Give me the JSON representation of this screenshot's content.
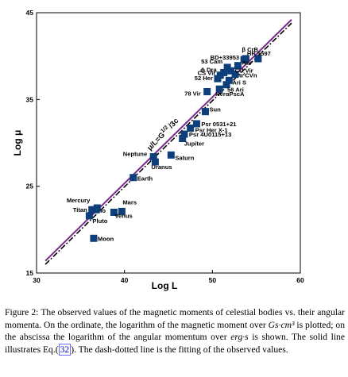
{
  "chart_data": {
    "type": "scatter",
    "xlabel": "Log L",
    "ylabel": "Log μ",
    "xlim": [
      30,
      60
    ],
    "ylim": [
      15,
      45
    ],
    "x_ticks": [
      30,
      40,
      50,
      60
    ],
    "y_ticks": [
      15,
      25,
      35,
      45
    ],
    "grid": false,
    "marker_color": "#0d3f7a",
    "line_annotation": "μ/L=G^1/2 /3c",
    "line_annotation_parts": {
      "pre": "μ/L=G",
      "sup": "1/2",
      "post": "/3c"
    },
    "lines": [
      {
        "style": "solid",
        "color": "#7a2a8e",
        "x": [
          31,
          59
        ],
        "y": [
          16.4,
          44.2
        ]
      },
      {
        "style": "dash-dot",
        "color": "#000000",
        "x": [
          31,
          59
        ],
        "y": [
          16.0,
          43.8
        ]
      }
    ],
    "points": [
      {
        "label": "Moon",
        "x": 36.5,
        "y": 19.0
      },
      {
        "label": "Pluto",
        "x": 36.0,
        "y": 21.6
      },
      {
        "label": "Titan",
        "x": 36.3,
        "y": 22.3
      },
      {
        "label": "Io",
        "x": 36.8,
        "y": 22.3
      },
      {
        "label": "Mercury",
        "x": 36.9,
        "y": 22.5
      },
      {
        "label": "Venus",
        "x": 38.8,
        "y": 22.0
      },
      {
        "label": "Mars",
        "x": 39.7,
        "y": 22.1
      },
      {
        "label": "Earth",
        "x": 41.0,
        "y": 26.0
      },
      {
        "label": "Uranus",
        "x": 43.5,
        "y": 27.8
      },
      {
        "label": "Neptune",
        "x": 43.3,
        "y": 28.4
      },
      {
        "label": "Saturn",
        "x": 45.3,
        "y": 28.6
      },
      {
        "label": "Jupiter",
        "x": 46.6,
        "y": 30.5
      },
      {
        "label": "Psr 4U0115+13",
        "x": 46.8,
        "y": 31.0
      },
      {
        "label": "Psr Her X-1",
        "x": 47.5,
        "y": 31.7
      },
      {
        "label": "Psr 0531+21",
        "x": 48.2,
        "y": 32.2
      },
      {
        "label": "Sun",
        "x": 49.2,
        "y": 33.6
      },
      {
        "label": "78 Vir",
        "x": 49.4,
        "y": 35.9
      },
      {
        "label": "HerαPscA",
        "x": 50.8,
        "y": 36.2
      },
      {
        "label": "56 Ari",
        "x": 51.6,
        "y": 36.7
      },
      {
        "label": "Ari S",
        "x": 51.9,
        "y": 37.2
      },
      {
        "label": "52 Her",
        "x": 50.6,
        "y": 37.4
      },
      {
        "label": "CS Vir",
        "x": 50.9,
        "y": 37.8
      },
      {
        "label": "ϕ Dra",
        "x": 51.3,
        "y": 38.1
      },
      {
        "label": "α²CVn",
        "x": 52.6,
        "y": 37.9
      },
      {
        "label": "CU Vir",
        "x": 52.1,
        "y": 38.3
      },
      {
        "label": "53 Cam",
        "x": 51.7,
        "y": 38.7
      },
      {
        "label": "Aur",
        "x": 52.9,
        "y": 38.9
      },
      {
        "label": "BD+33953",
        "x": 53.6,
        "y": 39.6
      },
      {
        "label": "β CrB",
        "x": 53.8,
        "y": 39.7
      },
      {
        "label": "HR 5597",
        "x": 55.2,
        "y": 39.7
      }
    ]
  },
  "caption": {
    "label": "Figure 2:",
    "text_1": "The observed values of the magnetic moments of celestial bodies vs. their angular momenta. On the ordinate, the logarithm of the magnetic moment over",
    "unit_1": "Gs·cm³",
    "text_2": "is plotted; on the abscissa the logarithm of the angular momentum over",
    "unit_2": "erg·s",
    "text_3": "is shown. The solid line illustrates Eq.(",
    "eq_ref": "32",
    "text_4": "). The dash-dotted line is the fitting of the observed values."
  }
}
